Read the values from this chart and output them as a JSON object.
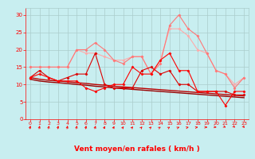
{
  "x": [
    0,
    1,
    2,
    3,
    4,
    5,
    6,
    7,
    8,
    9,
    10,
    11,
    12,
    13,
    14,
    15,
    16,
    17,
    18,
    19,
    20,
    21,
    22,
    23
  ],
  "series": [
    {
      "color": "#FF0000",
      "lw": 0.8,
      "marker": "D",
      "ms": 1.5,
      "values": [
        12,
        13,
        12,
        11,
        11,
        11,
        9,
        8,
        9,
        10,
        10,
        15,
        13,
        13,
        17,
        19,
        14,
        14,
        8,
        8,
        8,
        4,
        8,
        8
      ]
    },
    {
      "color": "#DD0000",
      "lw": 0.8,
      "marker": "D",
      "ms": 1.5,
      "values": [
        12,
        14,
        12,
        11,
        12,
        13,
        13,
        19,
        10,
        9,
        9,
        9,
        14,
        15,
        13,
        14,
        10,
        10,
        8,
        8,
        8,
        8,
        7,
        7
      ]
    },
    {
      "color": "#BB0000",
      "lw": 1.0,
      "marker": null,
      "ms": 0,
      "values": [
        12,
        11.5,
        11.2,
        11.0,
        10.8,
        10.5,
        10.3,
        10.0,
        9.8,
        9.5,
        9.3,
        9.1,
        8.9,
        8.7,
        8.5,
        8.3,
        8.1,
        7.9,
        7.7,
        7.5,
        7.3,
        7.1,
        6.9,
        6.7
      ]
    },
    {
      "color": "#990000",
      "lw": 1.0,
      "marker": null,
      "ms": 0,
      "values": [
        11.5,
        11.0,
        10.7,
        10.5,
        10.3,
        10.0,
        9.8,
        9.5,
        9.3,
        9.0,
        8.8,
        8.6,
        8.4,
        8.2,
        8.0,
        7.8,
        7.6,
        7.4,
        7.2,
        7.0,
        6.8,
        6.6,
        6.4,
        6.2
      ]
    },
    {
      "color": "#FF7777",
      "lw": 0.8,
      "marker": "D",
      "ms": 1.5,
      "values": [
        15,
        15,
        15,
        15,
        15,
        20,
        20,
        22,
        20,
        17,
        16,
        18,
        18,
        13,
        16,
        27,
        30,
        26,
        24,
        19,
        14,
        13,
        9,
        12
      ]
    },
    {
      "color": "#FFAAAA",
      "lw": 0.8,
      "marker": "D",
      "ms": 1.5,
      "values": [
        15,
        15,
        15,
        15,
        15,
        20,
        19,
        19,
        18,
        17,
        17,
        18,
        18,
        13,
        17,
        26,
        26,
        24,
        20,
        19,
        14,
        13,
        10,
        12
      ]
    }
  ],
  "xlim": [
    -0.5,
    23.5
  ],
  "ylim": [
    0,
    32
  ],
  "yticks": [
    0,
    5,
    10,
    15,
    20,
    25,
    30
  ],
  "xticks": [
    0,
    1,
    2,
    3,
    4,
    5,
    6,
    7,
    8,
    9,
    10,
    11,
    12,
    13,
    14,
    15,
    16,
    17,
    18,
    19,
    20,
    21,
    22,
    23
  ],
  "xlabel": "Vent moyen/en rafales ( km/h )",
  "bg_color": "#c8eef0",
  "grid_color": "#aacccc",
  "tick_color": "#FF0000",
  "xlabel_color": "#FF0000",
  "arrow_color": "#FF0000",
  "arrow_angles": [
    200,
    200,
    200,
    200,
    200,
    200,
    200,
    205,
    215,
    220,
    225,
    230,
    235,
    240,
    250,
    250,
    255,
    260,
    265,
    270,
    275,
    285,
    295,
    310
  ]
}
